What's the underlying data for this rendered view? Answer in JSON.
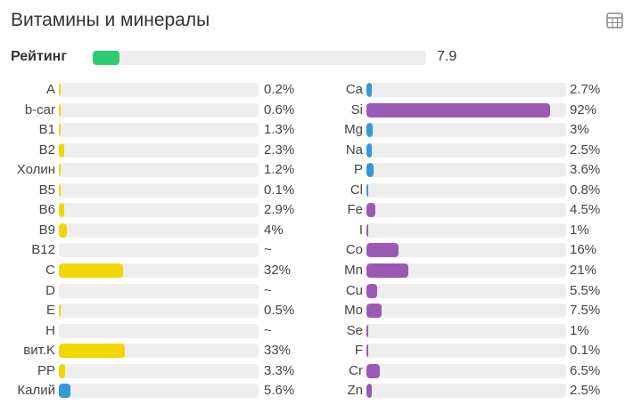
{
  "header": {
    "title": "Витамины и минералы",
    "table_icon": "table-icon"
  },
  "rating": {
    "label": "Рейтинг",
    "value": "7.9",
    "fill_fraction": 0.079
  },
  "colors": {
    "vitamin": "#f2d600",
    "mineral_blue": "#3498db",
    "mineral_purple": "#9b59b6",
    "rating": "#2ecc71",
    "track": "#eeeeee"
  },
  "chart_data": {
    "type": "bar",
    "title": "Витамины и минералы",
    "unit": "% of daily value",
    "xlim": [
      0,
      100
    ],
    "series": [
      {
        "name": "vitamins",
        "items": [
          {
            "label": "A",
            "value": 0.2,
            "text": "0.2%",
            "color": "#f2d600"
          },
          {
            "label": "b-car",
            "value": 0.6,
            "text": "0.6%",
            "color": "#f2d600"
          },
          {
            "label": "B1",
            "value": 1.3,
            "text": "1.3%",
            "color": "#f2d600"
          },
          {
            "label": "B2",
            "value": 2.3,
            "text": "2.3%",
            "color": "#f2d600"
          },
          {
            "label": "Холин",
            "value": 1.2,
            "text": "1.2%",
            "color": "#f2d600"
          },
          {
            "label": "B5",
            "value": 0.1,
            "text": "0.1%",
            "color": "#f2d600"
          },
          {
            "label": "B6",
            "value": 2.9,
            "text": "2.9%",
            "color": "#f2d600"
          },
          {
            "label": "B9",
            "value": 4,
            "text": "4%",
            "color": "#f2d600"
          },
          {
            "label": "B12",
            "value": 0,
            "text": "~",
            "color": "#f2d600"
          },
          {
            "label": "C",
            "value": 32,
            "text": "32%",
            "color": "#f2d600"
          },
          {
            "label": "D",
            "value": 0,
            "text": "~",
            "color": "#f2d600"
          },
          {
            "label": "E",
            "value": 0.5,
            "text": "0.5%",
            "color": "#f2d600"
          },
          {
            "label": "H",
            "value": 0,
            "text": "~",
            "color": "#f2d600"
          },
          {
            "label": "вит.K",
            "value": 33,
            "text": "33%",
            "color": "#f2d600"
          },
          {
            "label": "PP",
            "value": 3.3,
            "text": "3.3%",
            "color": "#f2d600"
          },
          {
            "label": "Калий",
            "value": 5.6,
            "text": "5.6%",
            "color": "#3498db"
          }
        ]
      },
      {
        "name": "minerals",
        "items": [
          {
            "label": "Ca",
            "value": 2.7,
            "text": "2.7%",
            "color": "#3498db"
          },
          {
            "label": "Si",
            "value": 92,
            "text": "92%",
            "color": "#9b59b6"
          },
          {
            "label": "Mg",
            "value": 3,
            "text": "3%",
            "color": "#3498db"
          },
          {
            "label": "Na",
            "value": 2.5,
            "text": "2.5%",
            "color": "#3498db"
          },
          {
            "label": "P",
            "value": 3.6,
            "text": "3.6%",
            "color": "#3498db"
          },
          {
            "label": "Cl",
            "value": 0.8,
            "text": "0.8%",
            "color": "#3498db"
          },
          {
            "label": "Fe",
            "value": 4.5,
            "text": "4.5%",
            "color": "#9b59b6"
          },
          {
            "label": "I",
            "value": 1,
            "text": "1%",
            "color": "#9b59b6"
          },
          {
            "label": "Co",
            "value": 16,
            "text": "16%",
            "color": "#9b59b6"
          },
          {
            "label": "Mn",
            "value": 21,
            "text": "21%",
            "color": "#9b59b6"
          },
          {
            "label": "Cu",
            "value": 5.5,
            "text": "5.5%",
            "color": "#9b59b6"
          },
          {
            "label": "Mo",
            "value": 7.5,
            "text": "7.5%",
            "color": "#9b59b6"
          },
          {
            "label": "Se",
            "value": 1,
            "text": "1%",
            "color": "#9b59b6"
          },
          {
            "label": "F",
            "value": 0.1,
            "text": "0.1%",
            "color": "#9b59b6"
          },
          {
            "label": "Cr",
            "value": 6.5,
            "text": "6.5%",
            "color": "#9b59b6"
          },
          {
            "label": "Zn",
            "value": 2.5,
            "text": "2.5%",
            "color": "#9b59b6"
          }
        ]
      }
    ]
  }
}
